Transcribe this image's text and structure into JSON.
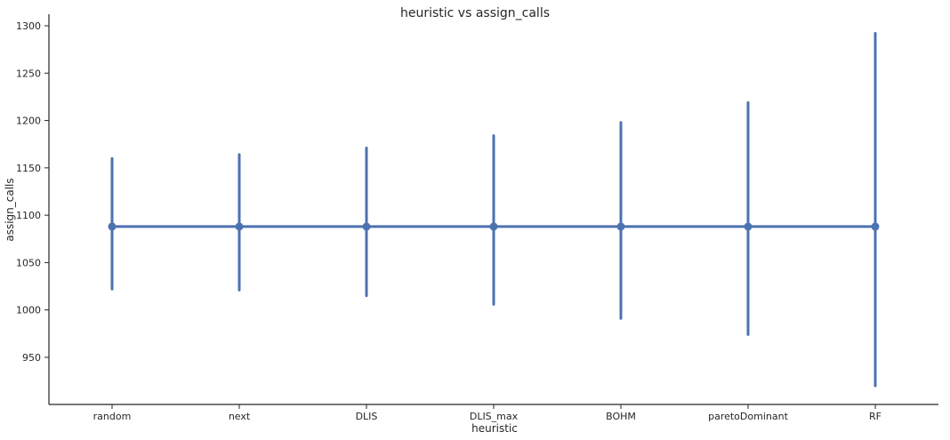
{
  "chart_data": {
    "type": "line",
    "title": "heuristic vs assign_calls",
    "xlabel": "heuristic",
    "ylabel": "assign_calls",
    "categories": [
      "random",
      "next",
      "DLIS",
      "DLIS_max",
      "BOHM",
      "paretoDominant",
      "RF"
    ],
    "series": [
      {
        "values": [
          1088,
          1088,
          1088,
          1088,
          1088,
          1088,
          1088
        ],
        "ci_low": [
          1022,
          1021,
          1015,
          1006,
          991,
          974,
          920
        ],
        "ci_high": [
          1160,
          1164,
          1171,
          1184,
          1198,
          1219,
          1292
        ],
        "color": "#4c72b0"
      }
    ],
    "ylim": [
      905,
      1310
    ],
    "yticks": [
      950,
      1000,
      1050,
      1100,
      1150,
      1200,
      1250,
      1300
    ],
    "grid": false
  }
}
